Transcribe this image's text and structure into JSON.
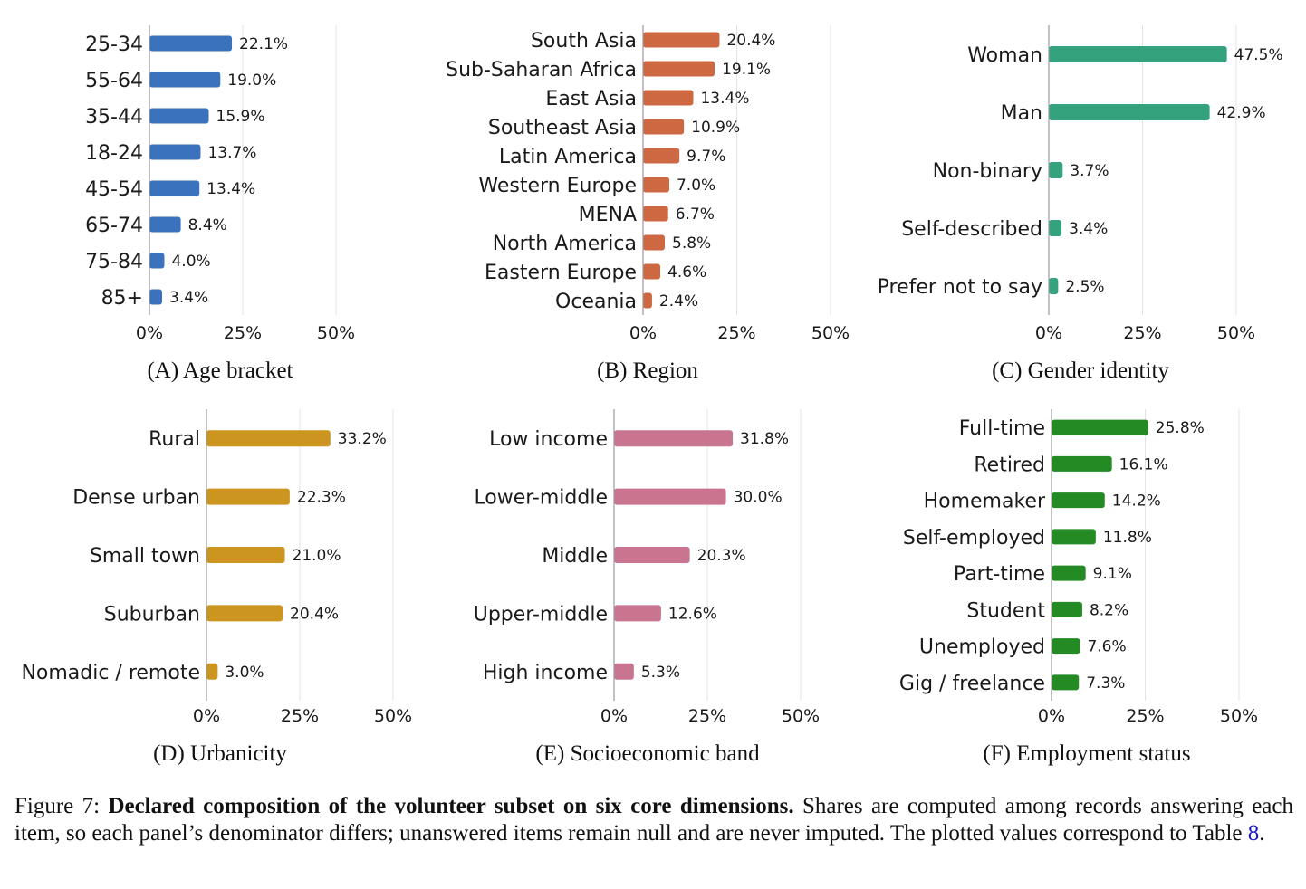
{
  "chart_data": [
    {
      "type": "bar",
      "orientation": "horizontal",
      "caption": "(A) Age bracket",
      "categories": [
        "25-34",
        "55-64",
        "35-44",
        "18-24",
        "45-54",
        "65-74",
        "75-84",
        "85+"
      ],
      "values": [
        22.1,
        19.0,
        15.9,
        13.7,
        13.4,
        8.4,
        4.0,
        3.4
      ],
      "value_labels": [
        "22.1%",
        "19.0%",
        "15.9%",
        "13.7%",
        "13.4%",
        "8.4%",
        "4.0%",
        "3.4%"
      ],
      "xticks": [
        "0%",
        "25%",
        "50%"
      ],
      "xlim": [
        0,
        50
      ],
      "grid": true,
      "color": "#3a72bd"
    },
    {
      "type": "bar",
      "orientation": "horizontal",
      "caption": "(B) Region",
      "categories": [
        "South Asia",
        "Sub-Saharan Africa",
        "East Asia",
        "Southeast Asia",
        "Latin America",
        "Western Europe",
        "MENA",
        "North America",
        "Eastern Europe",
        "Oceania"
      ],
      "values": [
        20.4,
        19.1,
        13.4,
        10.9,
        9.7,
        7.0,
        6.7,
        5.8,
        4.6,
        2.4
      ],
      "value_labels": [
        "20.4%",
        "19.1%",
        "13.4%",
        "10.9%",
        "9.7%",
        "7.0%",
        "6.7%",
        "5.8%",
        "4.6%",
        "2.4%"
      ],
      "xticks": [
        "0%",
        "25%",
        "50%"
      ],
      "xlim": [
        0,
        50
      ],
      "grid": true,
      "color": "#cd6842"
    },
    {
      "type": "bar",
      "orientation": "horizontal",
      "caption": "(C) Gender identity",
      "categories": [
        "Woman",
        "Man",
        "Non-binary",
        "Self-described",
        "Prefer not to say"
      ],
      "values": [
        47.5,
        42.9,
        3.7,
        3.4,
        2.5
      ],
      "value_labels": [
        "47.5%",
        "42.9%",
        "3.7%",
        "3.4%",
        "2.5%"
      ],
      "xticks": [
        "0%",
        "25%",
        "50%"
      ],
      "xlim": [
        0,
        50
      ],
      "grid": true,
      "color": "#34a27c"
    },
    {
      "type": "bar",
      "orientation": "horizontal",
      "caption": "(D) Urbanicity",
      "categories": [
        "Rural",
        "Dense urban",
        "Small town",
        "Suburban",
        "Nomadic / remote"
      ],
      "values": [
        33.2,
        22.3,
        21.0,
        20.4,
        3.0
      ],
      "value_labels": [
        "33.2%",
        "22.3%",
        "21.0%",
        "20.4%",
        "3.0%"
      ],
      "xticks": [
        "0%",
        "25%",
        "50%"
      ],
      "xlim": [
        0,
        50
      ],
      "grid": true,
      "color": "#cc951f"
    },
    {
      "type": "bar",
      "orientation": "horizontal",
      "caption": "(E) Socioeconomic band",
      "categories": [
        "Low income",
        "Lower-middle",
        "Middle",
        "Upper-middle",
        "High income"
      ],
      "values": [
        31.8,
        30.0,
        20.3,
        12.6,
        5.3
      ],
      "value_labels": [
        "31.8%",
        "30.0%",
        "20.3%",
        "12.6%",
        "5.3%"
      ],
      "xticks": [
        "0%",
        "25%",
        "50%"
      ],
      "xlim": [
        0,
        50
      ],
      "grid": true,
      "color": "#c97590"
    },
    {
      "type": "bar",
      "orientation": "horizontal",
      "caption": "(F) Employment status",
      "categories": [
        "Full-time",
        "Retired",
        "Homemaker",
        "Self-employed",
        "Part-time",
        "Student",
        "Unemployed",
        "Gig / freelance"
      ],
      "values": [
        25.8,
        16.1,
        14.2,
        11.8,
        9.1,
        8.2,
        7.6,
        7.3
      ],
      "value_labels": [
        "25.8%",
        "16.1%",
        "14.2%",
        "11.8%",
        "9.1%",
        "8.2%",
        "7.6%",
        "7.3%"
      ],
      "xticks": [
        "0%",
        "25%",
        "50%"
      ],
      "xlim": [
        0,
        50
      ],
      "grid": true,
      "color": "#238a24"
    }
  ],
  "figure_caption": {
    "label": "Figure 7:",
    "bold": "Declared composition of the volunteer subset on six core dimensions.",
    "text": "Shares are computed among records answering each item, so each panel’s denominator differs; unanswered items remain null and are never imputed. The plotted values correspond to Table",
    "ref": "8",
    "end": "."
  }
}
